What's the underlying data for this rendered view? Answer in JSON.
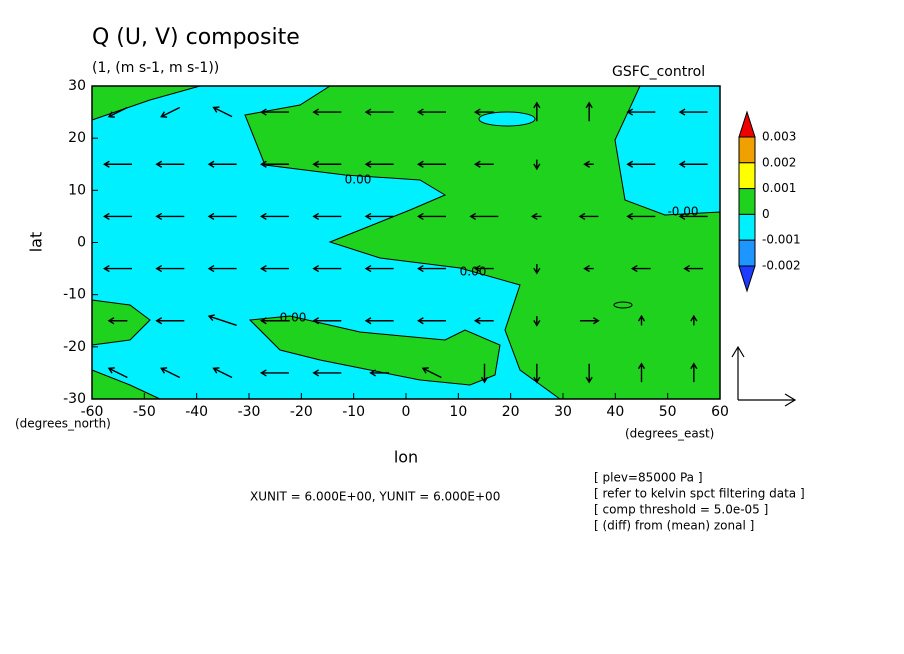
{
  "chart_data": {
    "type": "vector-contour",
    "title": "Q (U, V) composite",
    "subtitle": "(1, (m s-1, m s-1))",
    "run_label": "GSFC_control",
    "x_label": "lon",
    "y_label": "lat",
    "x_unit_label": "(degrees_east)",
    "y_unit_label": "(degrees_north)",
    "xlim": [
      -60,
      60
    ],
    "ylim": [
      -30,
      30
    ],
    "xticks": [
      -60,
      -50,
      -40,
      -30,
      -20,
      -10,
      0,
      10,
      20,
      30,
      40,
      50,
      60
    ],
    "yticks": [
      -30,
      -20,
      -10,
      0,
      10,
      20,
      30
    ],
    "vector_units": "XUNIT = 6.000E+00, YUNIT = 6.000E+00",
    "notes": [
      "[ plev=85000 Pa ]",
      "[ refer to kelvin spct filtering data ]",
      "[ comp threshold = 5.0e-05 ]",
      "[ (diff) from (mean) zonal ]"
    ],
    "contour_labels": [
      "0.00",
      "0.00",
      "0.00",
      "-0.00"
    ],
    "colorbar": {
      "levels": [
        -0.002,
        -0.001,
        0,
        0.001,
        0.002,
        0.003
      ],
      "colors": [
        "#1e3cff",
        "#1e96ff",
        "#00f0ff",
        "#1ed21e",
        "#ffff00",
        "#f0a000",
        "#f00000"
      ]
    },
    "vector_lon": [
      -55,
      -45,
      -35,
      -25,
      -15,
      -5,
      5,
      15,
      25,
      35,
      45,
      55
    ],
    "vector_lat": [
      25,
      15,
      5,
      -5,
      -15,
      -25
    ],
    "u": [
      [
        -2,
        -2,
        -2,
        -3,
        -3,
        -3,
        -3,
        -2,
        0,
        0,
        -3,
        -3
      ],
      [
        -3,
        -3,
        -3,
        -3,
        -3,
        -3,
        -3,
        -2,
        0,
        -1,
        -3,
        -3
      ],
      [
        -3,
        -3,
        -3,
        -3,
        -3,
        -3,
        -3,
        -3,
        -1,
        -2,
        -3,
        -3
      ],
      [
        -3,
        -3,
        -3,
        -3,
        -3,
        -3,
        -3,
        -2,
        0,
        -1,
        -2,
        -2
      ],
      [
        -2,
        -3,
        -3,
        -3,
        -3,
        -3,
        -3,
        -2,
        0,
        2,
        0,
        0
      ],
      [
        -2,
        -2,
        -2,
        -3,
        -3,
        -2,
        -2,
        0,
        0,
        0,
        0,
        0
      ]
    ],
    "v": [
      [
        -1,
        -1,
        1,
        0,
        0,
        0,
        0,
        0,
        2,
        2,
        0,
        0
      ],
      [
        0,
        0,
        0,
        0,
        0,
        0,
        0,
        0,
        -1,
        0,
        0,
        0
      ],
      [
        0,
        0,
        0,
        0,
        0,
        0,
        0,
        0,
        0,
        0,
        0,
        0
      ],
      [
        0,
        0,
        0,
        0,
        0,
        0,
        0,
        0,
        -1,
        0,
        0,
        0
      ],
      [
        0,
        0,
        1,
        0,
        0,
        0,
        0,
        0,
        -1,
        0,
        1,
        1
      ],
      [
        1,
        1,
        1,
        0,
        0,
        0,
        1,
        -2,
        -2,
        -2,
        2,
        2
      ]
    ]
  }
}
